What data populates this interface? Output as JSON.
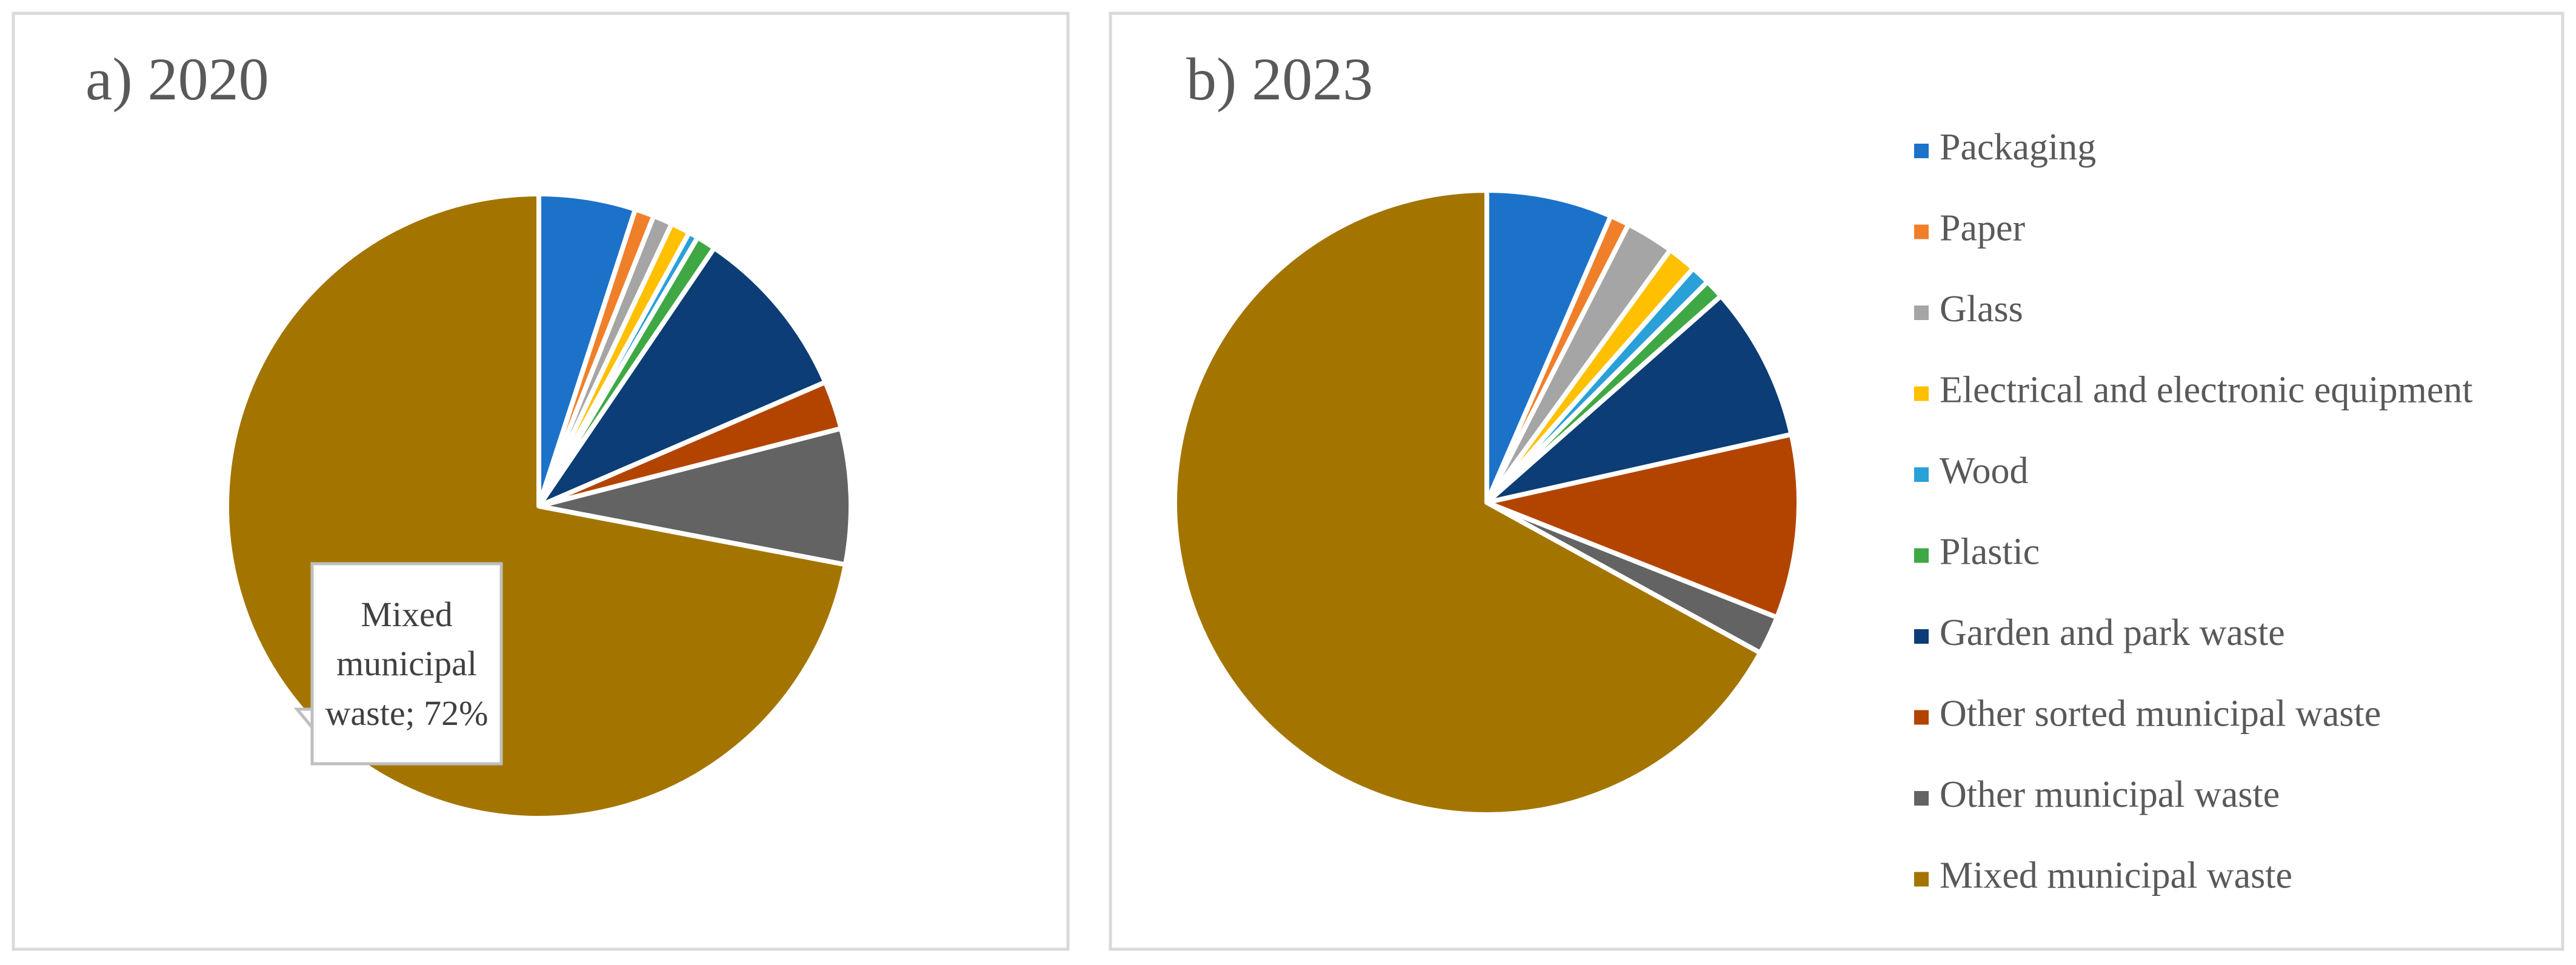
{
  "chart_data": [
    {
      "type": "pie",
      "title": "a) 2020",
      "categories": [
        "Packaging",
        "Paper",
        "Glass",
        "Electrical and electronic equipment",
        "Wood",
        "Plastic",
        "Garden and park waste",
        "Other sorted municipal waste",
        "Other municipal waste",
        "Mixed municipal waste"
      ],
      "values": [
        5,
        1,
        1,
        1,
        0.5,
        1,
        9,
        2.5,
        7,
        72
      ],
      "value_labels": [
        null,
        null,
        null,
        null,
        null,
        null,
        null,
        null,
        null,
        "Mixed municipal waste; 72%"
      ],
      "colors": [
        "#1c72c9",
        "#f07f2a",
        "#a5a5a5",
        "#ffc000",
        "#2aa0d8",
        "#3fa844",
        "#0c3d76",
        "#b34400",
        "#636363",
        "#a37500"
      ]
    },
    {
      "type": "pie",
      "title": "b) 2023",
      "categories": [
        "Packaging",
        "Paper",
        "Glass",
        "Electrical and electronic equipment",
        "Wood",
        "Plastic",
        "Garden and park waste",
        "Other sorted municipal waste",
        "Other municipal waste",
        "Mixed municipal waste"
      ],
      "values": [
        6.5,
        1,
        2.5,
        1.5,
        1,
        1,
        8,
        9.5,
        2,
        67
      ],
      "colors": [
        "#1c72c9",
        "#f07f2a",
        "#a5a5a5",
        "#ffc000",
        "#2aa0d8",
        "#3fa844",
        "#0c3d76",
        "#b34400",
        "#636363",
        "#a37500"
      ],
      "legend": "right"
    }
  ]
}
